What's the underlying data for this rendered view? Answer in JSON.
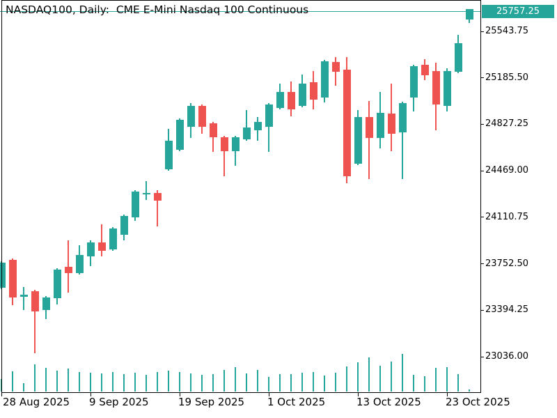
{
  "title": "NASDAQ100, Daily:  CME E-Mini Nasdaq 100 Continuous",
  "bid": {
    "label": "25757.25",
    "value": 25757.25
  },
  "colors": {
    "up": "#26a69a",
    "down": "#ef5350",
    "volume": "#26a69a",
    "bid_line": "#26a69a",
    "bid_box_bg": "#26a69a",
    "bid_box_text": "#ffffff",
    "axis_line": "#000000",
    "text": "#000000",
    "background": "#ffffff"
  },
  "y_axis": {
    "labels": [
      "25543.75",
      "25185.50",
      "24827.25",
      "24469.00",
      "24110.75",
      "23752.50",
      "23394.25",
      "23036.00"
    ]
  },
  "x_axis": {
    "labels": [
      {
        "text": "28 Aug 2025",
        "candle_index": 0
      },
      {
        "text": "9 Sep 2025",
        "candle_index": 8
      },
      {
        "text": "19 Sep 2025",
        "candle_index": 16
      },
      {
        "text": "1 Oct 2025",
        "candle_index": 24
      },
      {
        "text": "13 Oct 2025",
        "candle_index": 32
      },
      {
        "text": "23 Oct 2025",
        "candle_index": 40
      }
    ]
  },
  "chart_data": {
    "type": "candlestick",
    "symbol": "NASDAQ100",
    "timeframe": "Daily",
    "description": "CME E-Mini Nasdaq 100 Continuous",
    "last_price": 25757.25,
    "y_ticks": [
      25543.75,
      25185.5,
      24827.25,
      24469.0,
      24110.75,
      23752.5,
      23394.25,
      23036.0
    ],
    "x_tick_labels": [
      "28 Aug 2025",
      "9 Sep 2025",
      "19 Sep 2025",
      "1 Oct 2025",
      "13 Oct 2025",
      "23 Oct 2025"
    ],
    "fields": [
      "open",
      "high",
      "low",
      "close",
      "volume_rel_px"
    ],
    "candles": [
      [
        23567.75,
        23771.75,
        23557.0,
        23761.0,
        18
      ],
      [
        23782.5,
        23793.25,
        23433.5,
        23492.5,
        29
      ],
      [
        23498.0,
        23572.0,
        23395.75,
        23514.0,
        12
      ],
      [
        23540.75,
        23551.5,
        23063.0,
        23385.0,
        39
      ],
      [
        23395.75,
        23503.25,
        23326.0,
        23492.5,
        34
      ],
      [
        23487.0,
        23718.0,
        23438.75,
        23707.25,
        30
      ],
      [
        23728.75,
        23932.75,
        23530.0,
        23680.25,
        33
      ],
      [
        23680.25,
        23895.25,
        23669.75,
        23820.0,
        28
      ],
      [
        23809.25,
        23932.75,
        23734.0,
        23916.75,
        27
      ],
      [
        23916.75,
        24056.25,
        23809.25,
        23852.25,
        26
      ],
      [
        23863.0,
        24035.0,
        23852.25,
        24024.0,
        28
      ],
      [
        23975.75,
        24131.5,
        23932.75,
        24120.75,
        25
      ],
      [
        24110.0,
        24319.5,
        24083.25,
        24308.75,
        27
      ],
      [
        24287.25,
        24389.25,
        24244.25,
        24298.0,
        24
      ],
      [
        24298.0,
        24319.5,
        24040.25,
        24239.0,
        28
      ],
      [
        24480.5,
        24792.0,
        24469.75,
        24700.75,
        30
      ],
      [
        24631.0,
        24872.5,
        24620.25,
        24861.75,
        28
      ],
      [
        24808.0,
        24990.75,
        24722.25,
        24969.25,
        26
      ],
      [
        24969.25,
        24980.0,
        24754.25,
        24808.0,
        24
      ],
      [
        24835.0,
        24845.75,
        24614.75,
        24727.5,
        25
      ],
      [
        24727.5,
        24738.25,
        24427.0,
        24620.25,
        31
      ],
      [
        24620.25,
        24738.25,
        24507.25,
        24727.5,
        35
      ],
      [
        24711.5,
        24937.0,
        24700.75,
        24802.75,
        26
      ],
      [
        24781.25,
        24883.25,
        24700.75,
        24845.75,
        31
      ],
      [
        24808.0,
        24990.75,
        24614.75,
        24980.0,
        21
      ],
      [
        24953.0,
        25141.0,
        24942.25,
        25076.5,
        25
      ],
      [
        25076.5,
        25157.25,
        24888.75,
        24942.25,
        25
      ],
      [
        24969.25,
        25210.75,
        24958.5,
        25141.0,
        27
      ],
      [
        25151.75,
        25237.75,
        24942.25,
        25017.5,
        28
      ],
      [
        25033.75,
        25323.5,
        24996.0,
        25312.75,
        23
      ],
      [
        25307.5,
        25345.0,
        25124.75,
        25232.25,
        27
      ],
      [
        25248.5,
        25345.0,
        24373.25,
        24427.0,
        36
      ],
      [
        24523.5,
        24937.0,
        24512.75,
        24883.25,
        42
      ],
      [
        24883.25,
        25006.75,
        24405.25,
        24722.25,
        49
      ],
      [
        24722.25,
        25076.5,
        24641.75,
        24915.5,
        37
      ],
      [
        24910.25,
        25141.0,
        24620.25,
        24754.25,
        43
      ],
      [
        24765.25,
        25001.25,
        24405.25,
        24990.75,
        54
      ],
      [
        25033.75,
        25286.0,
        24926.25,
        25275.25,
        24
      ],
      [
        25286.0,
        25329.0,
        25167.75,
        25205.5,
        22
      ],
      [
        25237.75,
        25302.25,
        24781.25,
        24980.0,
        34
      ],
      [
        24969.25,
        25259.25,
        24926.25,
        25237.75,
        35
      ],
      [
        25232.25,
        25517.0,
        25221.5,
        25452.5,
        25
      ],
      [
        25635.0,
        25715.5,
        25608.25,
        25715.5,
        3
      ]
    ]
  }
}
